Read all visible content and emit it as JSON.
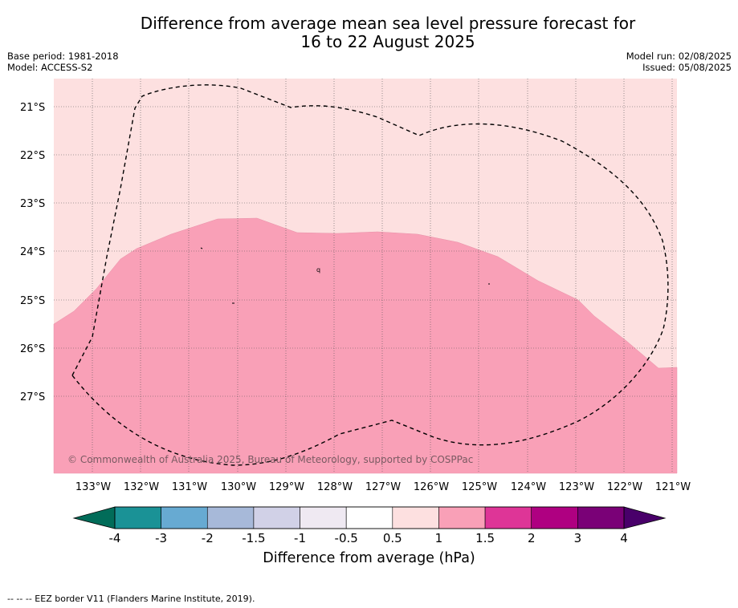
{
  "title": {
    "line1": "Difference from average mean sea level pressure forecast for",
    "line2": "16 to 22 August 2025"
  },
  "meta_left": {
    "base_period": "Base period: 1981-2018",
    "model": "Model: ACCESS-S2"
  },
  "meta_right": {
    "model_run": "Model run: 02/08/2025",
    "issued": "Issued: 05/08/2025"
  },
  "map": {
    "lon_labels": [
      "133°W",
      "132°W",
      "131°W",
      "130°W",
      "129°W",
      "128°W",
      "127°W",
      "126°W",
      "125°W",
      "124°W",
      "123°W",
      "122°W",
      "121°W"
    ],
    "lat_labels": [
      "21°S",
      "22°S",
      "23°S",
      "24°S",
      "25°S",
      "26°S",
      "27°S"
    ],
    "credit": "© Commonwealth of Australia 2025, Bureau of Meteorology, supported by COSPPac",
    "fill_colors": {
      "band_0_5_to_1": "#fde0e0",
      "band_1_to_1_5": "#f9a0b7"
    },
    "mark_label": "q"
  },
  "colorbar": {
    "ticks": [
      "-4",
      "-3",
      "-2",
      "-1.5",
      "-1",
      "-0.5",
      "0.5",
      "1",
      "1.5",
      "2",
      "3",
      "4"
    ],
    "colors": [
      "#1a9296",
      "#67aad2",
      "#a7b9d9",
      "#d1d1e7",
      "#efe9f2",
      "#ffffff",
      "#fde0e0",
      "#f9a0b7",
      "#de3597",
      "#af0081",
      "#7a0177"
    ],
    "under_color": "#016c59",
    "over_color": "#49006a",
    "title": "Difference from average (hPa)"
  },
  "footnote": "--  --  -- EEZ border V11 (Flanders Marine Institute, 2019)."
}
